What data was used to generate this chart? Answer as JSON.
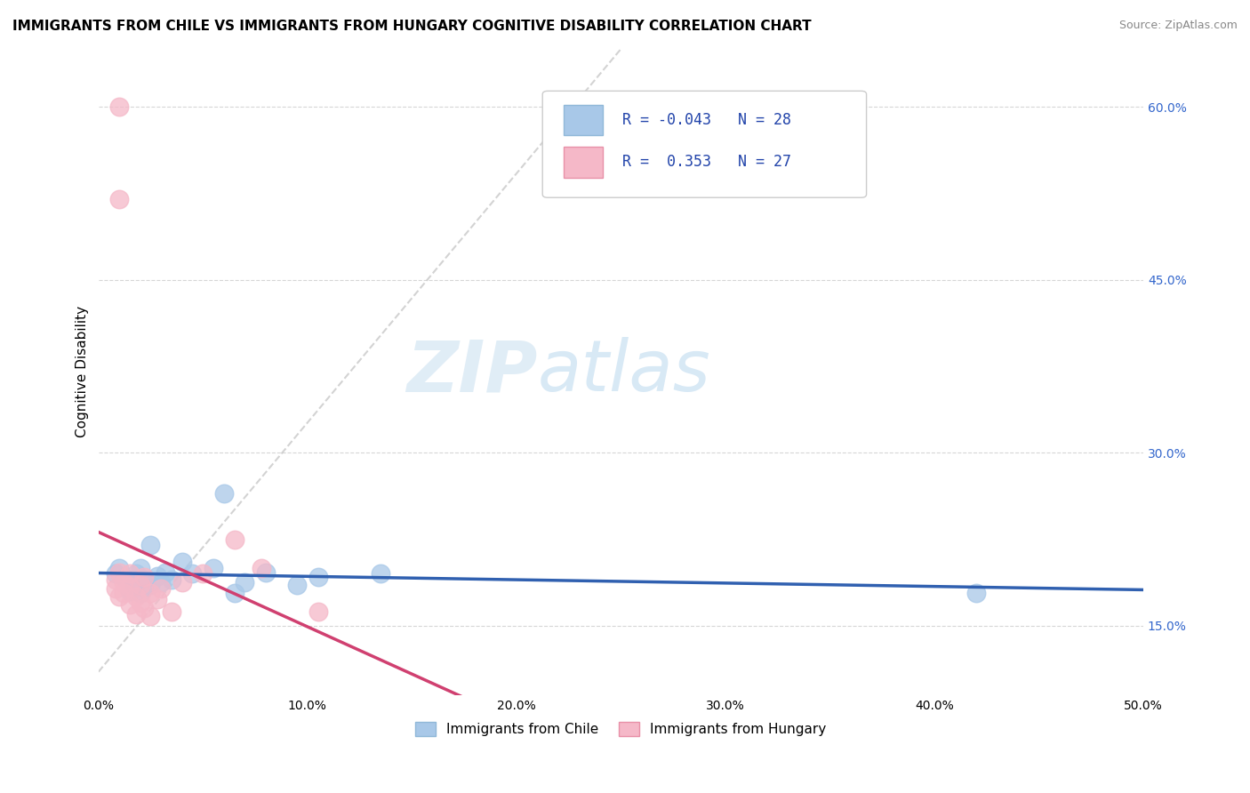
{
  "title": "IMMIGRANTS FROM CHILE VS IMMIGRANTS FROM HUNGARY COGNITIVE DISABILITY CORRELATION CHART",
  "source": "Source: ZipAtlas.com",
  "ylabel": "Cognitive Disability",
  "xlim": [
    0.0,
    0.5
  ],
  "ylim": [
    0.09,
    0.65
  ],
  "yticks": [
    0.15,
    0.3,
    0.45,
    0.6
  ],
  "ytick_labels": [
    "15.0%",
    "30.0%",
    "45.0%",
    "60.0%"
  ],
  "xticks": [
    0.0,
    0.1,
    0.2,
    0.3,
    0.4,
    0.5
  ],
  "xtick_labels": [
    "0.0%",
    "10.0%",
    "20.0%",
    "30.0%",
    "40.0%",
    "50.0%"
  ],
  "grid_color": "#cccccc",
  "watermark_zip": "ZIP",
  "watermark_atlas": "atlas",
  "legend_R_chile": "-0.043",
  "legend_N_chile": "28",
  "legend_R_hungary": "0.353",
  "legend_N_hungary": "27",
  "chile_color": "#a8c8e8",
  "hungary_color": "#f5b8c8",
  "chile_line_color": "#3060b0",
  "hungary_line_color": "#d04070",
  "diag_color": "#c8c8c8",
  "chile_scatter": [
    [
      0.008,
      0.195
    ],
    [
      0.01,
      0.2
    ],
    [
      0.012,
      0.192
    ],
    [
      0.015,
      0.188
    ],
    [
      0.015,
      0.18
    ],
    [
      0.018,
      0.195
    ],
    [
      0.018,
      0.185
    ],
    [
      0.02,
      0.2
    ],
    [
      0.02,
      0.178
    ],
    [
      0.022,
      0.19
    ],
    [
      0.022,
      0.183
    ],
    [
      0.025,
      0.22
    ],
    [
      0.025,
      0.185
    ],
    [
      0.028,
      0.193
    ],
    [
      0.03,
      0.188
    ],
    [
      0.032,
      0.196
    ],
    [
      0.035,
      0.19
    ],
    [
      0.04,
      0.205
    ],
    [
      0.045,
      0.195
    ],
    [
      0.055,
      0.2
    ],
    [
      0.06,
      0.265
    ],
    [
      0.065,
      0.178
    ],
    [
      0.07,
      0.188
    ],
    [
      0.08,
      0.196
    ],
    [
      0.095,
      0.185
    ],
    [
      0.105,
      0.192
    ],
    [
      0.135,
      0.195
    ],
    [
      0.42,
      0.178
    ]
  ],
  "hungary_scatter": [
    [
      0.008,
      0.19
    ],
    [
      0.008,
      0.182
    ],
    [
      0.01,
      0.196
    ],
    [
      0.01,
      0.175
    ],
    [
      0.01,
      0.6
    ],
    [
      0.012,
      0.188
    ],
    [
      0.012,
      0.178
    ],
    [
      0.015,
      0.168
    ],
    [
      0.015,
      0.184
    ],
    [
      0.015,
      0.195
    ],
    [
      0.018,
      0.175
    ],
    [
      0.018,
      0.16
    ],
    [
      0.02,
      0.185
    ],
    [
      0.02,
      0.17
    ],
    [
      0.022,
      0.192
    ],
    [
      0.022,
      0.165
    ],
    [
      0.025,
      0.178
    ],
    [
      0.025,
      0.158
    ],
    [
      0.028,
      0.173
    ],
    [
      0.03,
      0.182
    ],
    [
      0.035,
      0.162
    ],
    [
      0.04,
      0.188
    ],
    [
      0.05,
      0.195
    ],
    [
      0.065,
      0.225
    ],
    [
      0.01,
      0.52
    ],
    [
      0.078,
      0.2
    ],
    [
      0.105,
      0.162
    ]
  ],
  "title_fontsize": 11,
  "axis_fontsize": 11,
  "tick_fontsize": 10,
  "source_fontsize": 9,
  "legend_fontsize": 12
}
